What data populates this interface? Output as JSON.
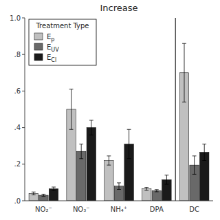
{
  "chart_data": {
    "type": "bar",
    "title": "Increase",
    "categories": [
      "NO₂⁻",
      "NO₃⁻",
      "NH₄⁺",
      "DPA",
      "DC"
    ],
    "legend_title": "Treatment Type",
    "legend": "upper left",
    "grid": false,
    "series": [
      {
        "name": "Ep",
        "color": "#c0c0c0",
        "values": [
          0.04,
          0.5,
          0.22,
          0.065,
          0.7
        ],
        "errors": [
          0.008,
          0.11,
          0.025,
          0.008,
          0.16
        ]
      },
      {
        "name": "EUV",
        "color": "#696969",
        "values": [
          0.03,
          0.27,
          0.08,
          0.055,
          0.195
        ],
        "errors": [
          0.006,
          0.04,
          0.018,
          0.006,
          0.05
        ]
      },
      {
        "name": "ECl",
        "color": "#1a1a1a",
        "values": [
          0.065,
          0.4,
          0.31,
          0.115,
          0.265
        ],
        "errors": [
          0.01,
          0.04,
          0.08,
          0.025,
          0.045
        ]
      }
    ],
    "ylim": [
      0.0,
      1.0
    ],
    "yticks": [
      {
        "value": 0.0,
        "label": ".0"
      },
      {
        "value": 0.2,
        "label": ".2"
      },
      {
        "value": 0.4,
        "label": ".4"
      },
      {
        "value": 0.6,
        "label": ".6"
      },
      {
        "value": 0.8,
        "label": ".8"
      },
      {
        "value": 1.0,
        "label": "1.0"
      }
    ]
  }
}
